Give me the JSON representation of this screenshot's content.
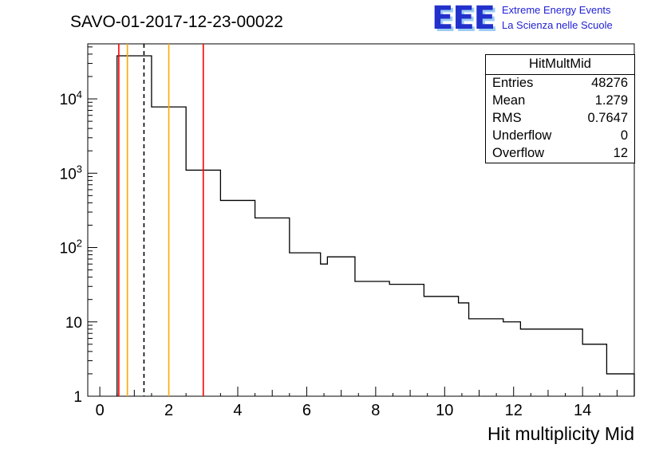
{
  "header": {
    "title": "SAVO-01-2017-12-23-00022",
    "logo": {
      "acronym": "EEE",
      "line1": "Extreme Energy Events",
      "line2": "La Scienza nelle Scuole",
      "color": "#2230cc",
      "shadow_color": "#9cccf2"
    }
  },
  "stats": {
    "title": "HitMultMid",
    "rows": [
      {
        "label": "Entries",
        "value": "48276"
      },
      {
        "label": "Mean",
        "value": "1.279"
      },
      {
        "label": "RMS",
        "value": "0.7647"
      },
      {
        "label": "Underflow",
        "value": "0"
      },
      {
        "label": "Overflow",
        "value": "12"
      }
    ]
  },
  "chart_data": {
    "type": "histogram-step",
    "title": "SAVO-01-2017-12-23-00022",
    "xlabel": "Hit multiplicity Mid",
    "ylabel": "",
    "y_scale": "log",
    "x_range": [
      -0.35,
      15.5
    ],
    "y_range": [
      1,
      55000
    ],
    "grid": false,
    "line_color": "#000000",
    "x_tick_values": [
      0,
      2,
      4,
      6,
      8,
      10,
      12,
      14
    ],
    "x_tick_labels": [
      "0",
      "2",
      "4",
      "6",
      "8",
      "10",
      "12",
      "14"
    ],
    "y_ticks": [
      {
        "v": 1,
        "label": "1"
      },
      {
        "v": 10,
        "label": "10"
      },
      {
        "v": 100,
        "label": "10",
        "exp": "2"
      },
      {
        "v": 1000,
        "label": "10",
        "exp": "3"
      },
      {
        "v": 10000,
        "label": "10",
        "exp": "4"
      }
    ],
    "steps": [
      {
        "x1": 0.5,
        "x2": 1.5,
        "y": 38000
      },
      {
        "x1": 1.5,
        "x2": 2.5,
        "y": 7800
      },
      {
        "x1": 2.5,
        "x2": 3.5,
        "y": 1100
      },
      {
        "x1": 3.5,
        "x2": 4.5,
        "y": 430
      },
      {
        "x1": 4.5,
        "x2": 5.5,
        "y": 250
      },
      {
        "x1": 5.5,
        "x2": 6.4,
        "y": 85
      },
      {
        "x1": 6.4,
        "x2": 6.6,
        "y": 60
      },
      {
        "x1": 6.6,
        "x2": 7.4,
        "y": 75
      },
      {
        "x1": 7.4,
        "x2": 8.4,
        "y": 35
      },
      {
        "x1": 8.4,
        "x2": 9.4,
        "y": 32
      },
      {
        "x1": 9.4,
        "x2": 10.4,
        "y": 22
      },
      {
        "x1": 10.4,
        "x2": 10.7,
        "y": 18
      },
      {
        "x1": 10.7,
        "x2": 11.7,
        "y": 11
      },
      {
        "x1": 11.7,
        "x2": 12.2,
        "y": 10
      },
      {
        "x1": 12.2,
        "x2": 14.0,
        "y": 8
      },
      {
        "x1": 14.0,
        "x2": 14.7,
        "y": 5
      },
      {
        "x1": 14.7,
        "x2": 15.5,
        "y": 2
      }
    ],
    "marker_lines": [
      {
        "x": 0.55,
        "color": "#ff0000",
        "style": "solid",
        "name": "red-marker-left"
      },
      {
        "x": 0.8,
        "color": "#ffaa00",
        "style": "solid",
        "name": "orange-marker-left"
      },
      {
        "x": 1.28,
        "color": "#000000",
        "style": "dashed",
        "name": "mean-dashed-marker"
      },
      {
        "x": 2.0,
        "color": "#ffaa00",
        "style": "solid",
        "name": "orange-marker-right"
      },
      {
        "x": 3.0,
        "color": "#ff0000",
        "style": "solid",
        "name": "red-marker-right"
      }
    ]
  }
}
